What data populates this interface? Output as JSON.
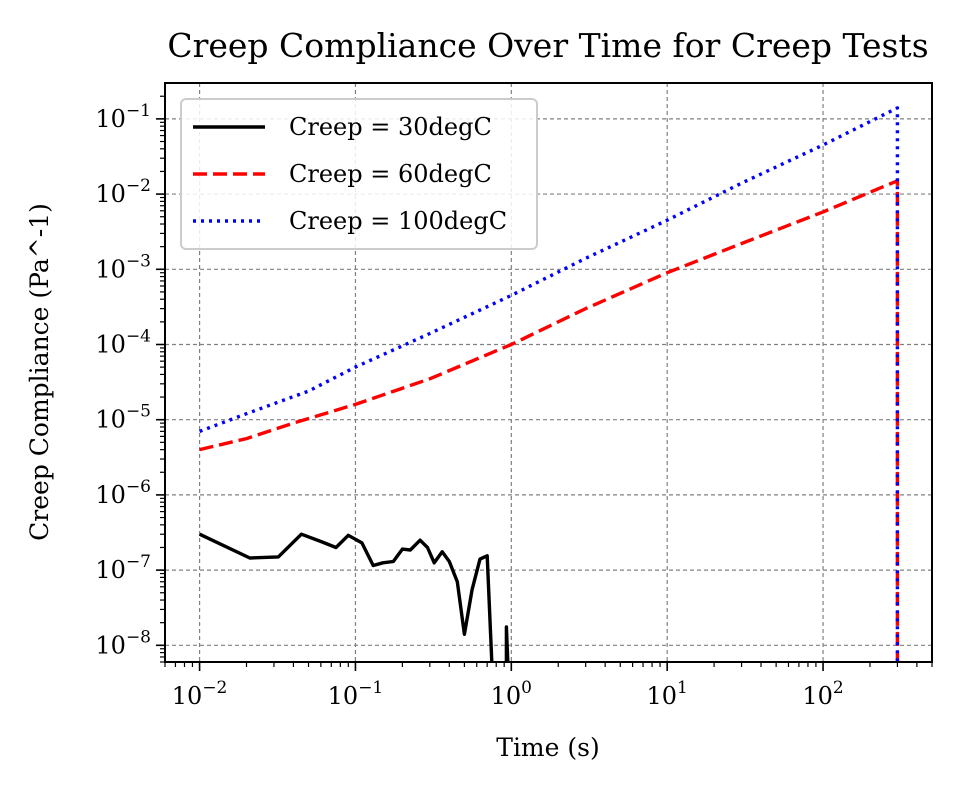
{
  "chart_data": {
    "type": "line",
    "title": "Creep Compliance Over Time for Creep Tests",
    "xlabel": "Time (s)",
    "ylabel": "Creep Compliance (Pa^-1)",
    "xscale": "log",
    "yscale": "log",
    "xlim": [
      0.006,
      500
    ],
    "ylim": [
      6e-09,
      0.3
    ],
    "grid": true,
    "legend_location": "upper left",
    "x_ticks": [
      {
        "value": 0.01,
        "base": "10",
        "exp": "−2"
      },
      {
        "value": 0.1,
        "base": "10",
        "exp": "−1"
      },
      {
        "value": 1,
        "base": "10",
        "exp": "0"
      },
      {
        "value": 10,
        "base": "10",
        "exp": "1"
      },
      {
        "value": 100,
        "base": "10",
        "exp": "2"
      }
    ],
    "y_ticks": [
      {
        "value": 1e-08,
        "base": "10",
        "exp": "−8"
      },
      {
        "value": 1e-07,
        "base": "10",
        "exp": "−7"
      },
      {
        "value": 1e-06,
        "base": "10",
        "exp": "−6"
      },
      {
        "value": 1e-05,
        "base": "10",
        "exp": "−5"
      },
      {
        "value": 0.0001,
        "base": "10",
        "exp": "−4"
      },
      {
        "value": 0.001,
        "base": "10",
        "exp": "−3"
      },
      {
        "value": 0.01,
        "base": "10",
        "exp": "−2"
      },
      {
        "value": 0.1,
        "base": "10",
        "exp": "−1"
      }
    ],
    "series": [
      {
        "name": "Creep = 30degC",
        "color": "#000000",
        "dash": "solid",
        "points": [
          [
            0.01,
            3e-07
          ],
          [
            0.021,
            1.45e-07
          ],
          [
            0.032,
            1.5e-07
          ],
          [
            0.045,
            3e-07
          ],
          [
            0.06,
            2.4e-07
          ],
          [
            0.075,
            2e-07
          ],
          [
            0.09,
            2.9e-07
          ],
          [
            0.11,
            2.3e-07
          ],
          [
            0.13,
            1.15e-07
          ],
          [
            0.15,
            1.25e-07
          ],
          [
            0.175,
            1.3e-07
          ],
          [
            0.2,
            1.9e-07
          ],
          [
            0.225,
            1.85e-07
          ],
          [
            0.26,
            2.5e-07
          ],
          [
            0.29,
            2e-07
          ],
          [
            0.32,
            1.25e-07
          ],
          [
            0.36,
            1.75e-07
          ],
          [
            0.4,
            1.3e-07
          ],
          [
            0.45,
            7e-08
          ],
          [
            0.5,
            1.4e-08
          ],
          [
            0.56,
            5.5e-08
          ],
          [
            0.63,
            1.4e-07
          ],
          [
            0.7,
            1.55e-07
          ],
          [
            0.75,
            6e-09
          ]
        ],
        "points_extra": [
          [
            0.93,
            6e-09
          ],
          [
            0.93,
            1.75e-08
          ],
          [
            0.95,
            6e-09
          ]
        ]
      },
      {
        "name": "Creep = 60degC",
        "color": "#ff0000",
        "dash": "dashed",
        "points": [
          [
            0.01,
            4e-06
          ],
          [
            0.02,
            5.6e-06
          ],
          [
            0.04,
            9e-06
          ],
          [
            0.1,
            1.6e-05
          ],
          [
            0.3,
            3.5e-05
          ],
          [
            1,
            0.0001
          ],
          [
            3,
            0.0003
          ],
          [
            10,
            0.0009
          ],
          [
            30,
            0.0022
          ],
          [
            100,
            0.0058
          ],
          [
            300,
            0.015
          ],
          [
            300,
            6e-09
          ]
        ]
      },
      {
        "name": "Creep = 100degC",
        "color": "#0000ff",
        "dash": "dotted",
        "points": [
          [
            0.01,
            7e-06
          ],
          [
            0.02,
            1.2e-05
          ],
          [
            0.05,
            2.4e-05
          ],
          [
            0.1,
            5e-05
          ],
          [
            0.3,
            0.00014
          ],
          [
            1,
            0.00045
          ],
          [
            3,
            0.0014
          ],
          [
            10,
            0.0045
          ],
          [
            30,
            0.014
          ],
          [
            100,
            0.045
          ],
          [
            300,
            0.14
          ],
          [
            300,
            6e-09
          ]
        ]
      }
    ]
  }
}
